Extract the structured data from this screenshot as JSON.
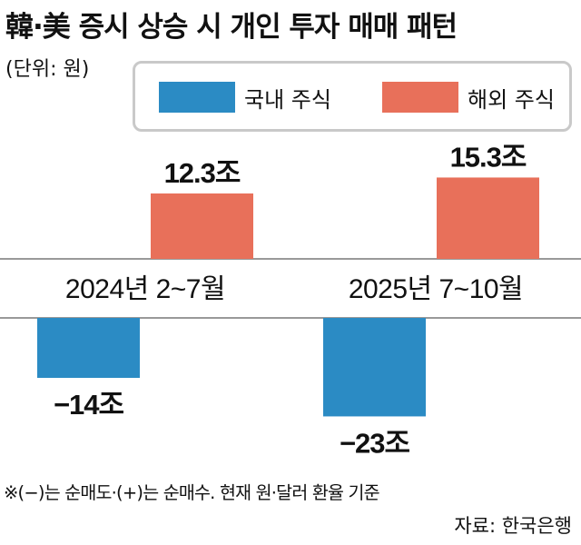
{
  "header": {
    "title": "韓·美 증시 상승 시 개인 투자 매매 패턴",
    "unit": "(단위: 원)"
  },
  "colors": {
    "domestic": "#2b8bc4",
    "overseas": "#e8705a"
  },
  "chart_data": {
    "type": "bar",
    "categories": [
      "2024년 2~7월",
      "2025년 7~10월"
    ],
    "series": [
      {
        "name": "국내 주식",
        "values": [
          -14,
          -23
        ],
        "labels": [
          "−14조",
          "−23조"
        ]
      },
      {
        "name": "해외 주식",
        "values": [
          12.3,
          15.3
        ],
        "labels": [
          "12.3조",
          "15.3조"
        ]
      }
    ],
    "ylim": [
      -23,
      15.3
    ],
    "legend": "top",
    "grid": false
  },
  "footnote": "※(−)는 순매도·(+)는 순매수. 현재 원·달러 환율 기준",
  "source": "자료: 한국은행"
}
